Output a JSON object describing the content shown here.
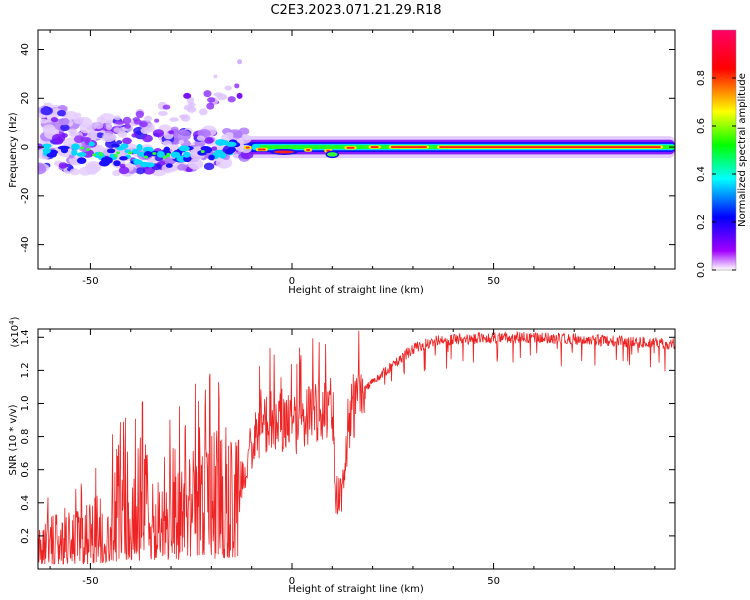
{
  "title": "C2E3.2023.071.21.29.R18",
  "chart_data": [
    {
      "type": "heatmap",
      "xlabel": "Height of straight line (km)",
      "ylabel": "Frequency (Hz)",
      "xlim": [
        -63,
        95
      ],
      "ylim": [
        -50,
        48
      ],
      "x_ticks": [
        "-50",
        "0",
        "50"
      ],
      "y_ticks": [
        "-40",
        "-20",
        "0",
        "20",
        "40"
      ],
      "x_tick_values": [
        -50,
        0,
        50
      ],
      "y_tick_values": [
        -40,
        -20,
        0,
        20,
        40
      ],
      "colorbar": {
        "label": "Normalized spectral amplitude",
        "range": [
          0,
          1
        ],
        "ticks": [
          "0.0",
          "0.2",
          "0.4",
          "0.6",
          "0.8"
        ],
        "tick_values": [
          0,
          0.2,
          0.4,
          0.6,
          0.8
        ],
        "colormap": [
          "#ffffff",
          "#a000ff",
          "#0000ff",
          "#00ffff",
          "#00ff00",
          "#ffff00",
          "#ff0000",
          "#ff0066"
        ]
      },
      "ridge": {
        "description_x": [
          -63,
          -45,
          -30,
          -20,
          -15,
          -10,
          -5,
          0,
          5,
          8,
          10,
          15,
          25,
          40,
          60,
          80,
          95
        ],
        "center_freq": [
          0,
          -3,
          -4,
          -3,
          -1,
          0,
          -2,
          -2,
          -1,
          0,
          -3,
          0,
          0,
          0,
          0,
          0,
          0
        ]
      }
    },
    {
      "type": "line",
      "xlabel": "Height of straight line (km)",
      "ylabel": "SNR (10 * v/v)",
      "y_multiplier": "(x10",
      "y_exponent": "4",
      "xlim": [
        -63,
        95
      ],
      "ylim": [
        0,
        14500
      ],
      "x_ticks": [
        "-50",
        "0",
        "50"
      ],
      "y_ticks": [
        "0.2",
        "0.4",
        "0.6",
        "0.8",
        "1.0",
        "1.2",
        "1.4"
      ],
      "x_tick_values": [
        -50,
        0,
        50
      ],
      "y_tick_values": [
        2000,
        4000,
        6000,
        8000,
        10000,
        12000,
        14000
      ],
      "series": [
        {
          "color": "#ee2222",
          "envelope_x": [
            -63,
            -55,
            -50,
            -45,
            -40,
            -35,
            -30,
            -25,
            -20,
            -15,
            -13,
            -10,
            -5,
            0,
            5,
            10,
            12,
            15,
            20,
            25,
            30,
            35,
            40,
            50,
            60,
            70,
            80,
            95
          ],
          "envelope_y": [
            1500,
            1700,
            2000,
            2800,
            3200,
            3500,
            3600,
            3800,
            4000,
            4500,
            5000,
            8000,
            9500,
            9000,
            9800,
            10500,
            4500,
            10200,
            11500,
            12500,
            13500,
            14000,
            14100,
            14200,
            14200,
            14100,
            14000,
            13800
          ]
        }
      ]
    }
  ]
}
